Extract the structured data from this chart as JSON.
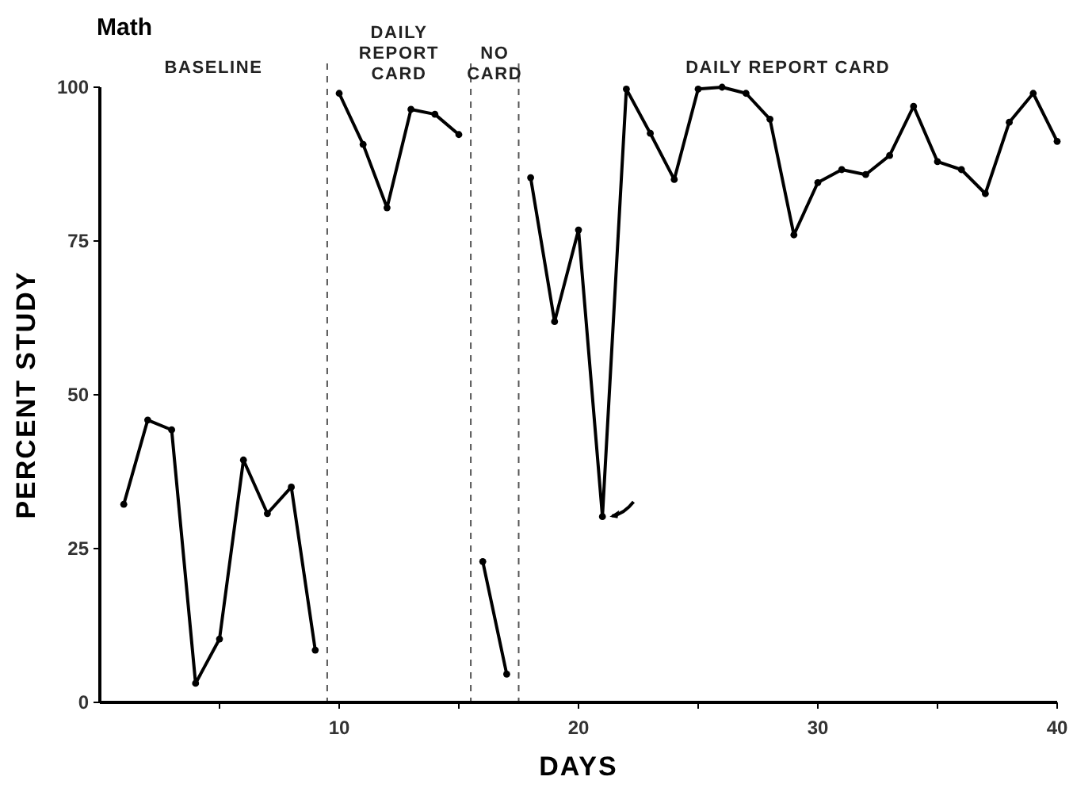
{
  "chart_data": {
    "type": "line",
    "title": "Math",
    "xlabel": "DAYS",
    "ylabel": "PERCENT STUDY",
    "xlim": [
      0,
      40
    ],
    "xticks": [
      {
        "value": 5,
        "label": null
      },
      10,
      {
        "value": 15,
        "label": null
      },
      20,
      {
        "value": 25,
        "label": null
      },
      30,
      {
        "value": 35,
        "label": null
      },
      40
    ],
    "ylim": [
      0,
      100
    ],
    "yticks": [
      0,
      25,
      50,
      75,
      100
    ],
    "marker": "circle",
    "line_style": "solid",
    "grid": false,
    "series": [
      {
        "color": "#000000",
        "x": [
          1,
          2,
          3,
          4,
          5,
          6,
          7,
          8,
          9
        ],
        "values": [
          32.2,
          45.9,
          44.3,
          3.1,
          10.3,
          39.4,
          30.7,
          35,
          8.5
        ]
      },
      {
        "color": "#000000",
        "x": [
          10,
          11,
          12,
          13,
          14,
          15
        ],
        "values": [
          99,
          90.7,
          80.4,
          96.4,
          95.6,
          92.3
        ]
      },
      {
        "color": "#000000",
        "x": [
          16,
          17
        ],
        "values": [
          22.9,
          4.6
        ]
      },
      {
        "color": "#000000",
        "x": [
          18,
          19,
          20,
          21,
          22,
          23,
          24,
          25,
          26,
          27,
          28,
          29,
          30,
          31,
          32,
          33,
          34,
          35,
          36,
          37,
          38,
          39,
          40
        ],
        "values": [
          85.3,
          61.9,
          76.8,
          30.2,
          99.7,
          92.5,
          85,
          99.7,
          100,
          99,
          94.8,
          76,
          84.5,
          86.6,
          85.8,
          88.9,
          96.9,
          87.9,
          86.6,
          82.7,
          94.3,
          99,
          91.2
        ]
      }
    ],
    "ref_lines": [
      {
        "axis": "x",
        "value": 9.5,
        "line_style": "dashed",
        "color": "#555555"
      },
      {
        "axis": "x",
        "value": 15.5,
        "line_style": "dashed",
        "color": "#555555"
      },
      {
        "axis": "x",
        "value": 17.5,
        "line_style": "dashed",
        "color": "#555555"
      }
    ],
    "annotations": [
      "BASELINE",
      "DAILY\nREPORT\nCARD",
      "NO\nCARD",
      "DAILY REPORT CARD"
    ]
  }
}
